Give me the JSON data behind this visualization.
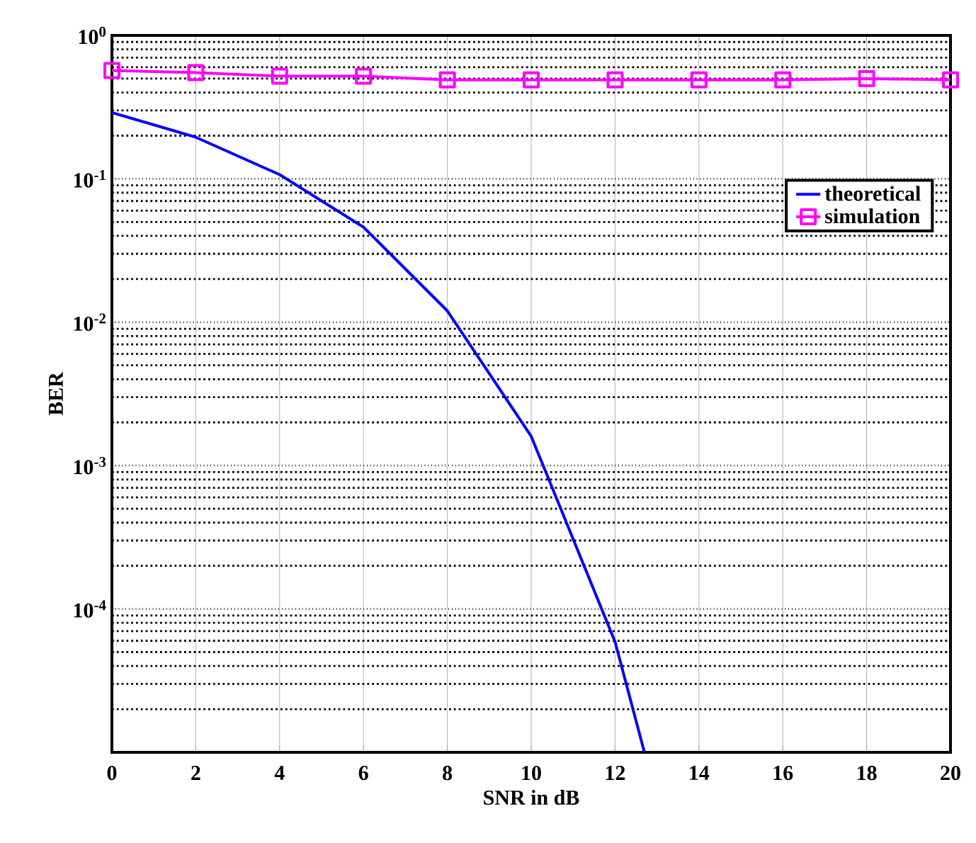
{
  "chart_data": {
    "type": "line",
    "xlabel": "SNR in dB",
    "ylabel": "BER",
    "log": "y",
    "grid": true,
    "legend": "top right",
    "xlim": [
      0,
      20
    ],
    "xticks": [
      0,
      2,
      4,
      6,
      8,
      10,
      12,
      14,
      16,
      18,
      20
    ],
    "ylim": [
      1e-05,
      1
    ],
    "yticks": [
      {
        "value": 1e-05,
        "label": null
      },
      {
        "value": 0.0001,
        "label": "10$^{-4}$"
      },
      {
        "value": 0.001,
        "label": "10$^{-3}$"
      },
      {
        "value": 0.01,
        "label": "10$^{-2}$"
      },
      {
        "value": 0.1,
        "label": "10$^{-1}$"
      },
      {
        "value": 1,
        "label": "10$^{0}$"
      }
    ],
    "series": [
      {
        "name": "theoretical",
        "color": "#0000ff",
        "marker": "none",
        "x": [
          0,
          2,
          4,
          6,
          8,
          10,
          12,
          12.7
        ],
        "values": [
          0.29,
          0.195,
          0.107,
          0.046,
          0.012,
          0.0016,
          5.9e-05,
          1e-05
        ]
      },
      {
        "name": "simulation",
        "color": "#ff00ff",
        "marker": "square",
        "x": [
          0,
          2,
          4,
          6,
          8,
          10,
          12,
          14,
          16,
          18,
          20
        ],
        "values": [
          0.57,
          0.55,
          0.52,
          0.52,
          0.49,
          0.49,
          0.49,
          0.49,
          0.49,
          0.5,
          0.49
        ]
      }
    ]
  }
}
